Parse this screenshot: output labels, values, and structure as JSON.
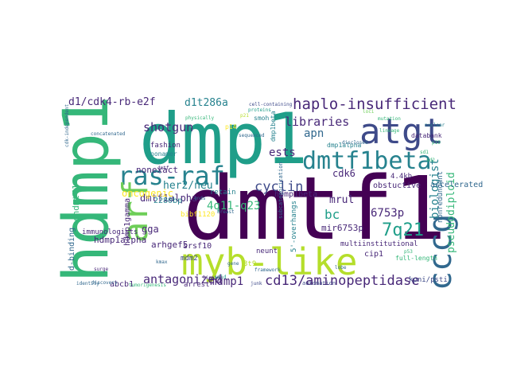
{
  "word_cloud": {
    "colors": {
      "background": "#ffffff",
      "dark_purple": "#440154",
      "indigo": "#482878",
      "blue": "#3e4a89",
      "steel": "#31688e",
      "teal": "#26828e",
      "green_teal": "#1f9e89",
      "green": "#35b779",
      "lime": "#6ece58",
      "yellow_green": "#b5de2b",
      "yellow": "#fde725"
    },
    "words": [
      {
        "text": "dmtf1",
        "color": "dark_purple"
      },
      {
        "text": "dmp1",
        "color": "green_teal"
      },
      {
        "text": "hdmp1",
        "color": "green"
      },
      {
        "text": "myb-like",
        "color": "yellow_green"
      },
      {
        "text": "atgt",
        "color": "blue"
      },
      {
        "text": "dmtf1beta",
        "color": "teal"
      },
      {
        "text": "ras-raf",
        "color": "teal"
      },
      {
        "text": "arf",
        "color": "lime"
      },
      {
        "text": "cccg",
        "color": "steel"
      },
      {
        "text": "haplo-insufficient",
        "color": "indigo"
      },
      {
        "text": "cd13/aminopeptidase",
        "color": "indigo"
      },
      {
        "text": "cyclin",
        "color": "blue"
      },
      {
        "text": "7q21",
        "color": "green_teal"
      },
      {
        "text": "libraries",
        "color": "indigo"
      },
      {
        "text": "shotgun",
        "color": "indigo"
      },
      {
        "text": "4q11-q23",
        "color": "green"
      },
      {
        "text": "6753p",
        "color": "indigo"
      },
      {
        "text": "apn",
        "color": "steel"
      },
      {
        "text": "ests",
        "color": "indigo"
      },
      {
        "text": "her2/neu",
        "color": "teal"
      },
      {
        "text": "antagonized",
        "color": "indigo"
      },
      {
        "text": "mdmp1",
        "color": "indigo"
      },
      {
        "text": "bc",
        "color": "green_teal"
      },
      {
        "text": "d1/cdk4-rb-e2f",
        "color": "indigo"
      },
      {
        "text": "d1t286a",
        "color": "teal"
      },
      {
        "text": "dmtf1alpha",
        "color": "indigo"
      },
      {
        "text": "oncogenic",
        "color": "yellow"
      },
      {
        "text": "mrul",
        "color": "indigo"
      },
      {
        "text": "cdk6",
        "color": "indigo"
      },
      {
        "text": "biologist",
        "color": "teal"
      },
      {
        "text": "pseudodiploid",
        "color": "green"
      },
      {
        "text": "gga",
        "color": "indigo"
      },
      {
        "text": "hdmp1alpha",
        "color": "indigo"
      },
      {
        "text": "arhgef5",
        "color": "indigo"
      },
      {
        "text": "nonexact",
        "color": "indigo"
      },
      {
        "text": "shdmtf1",
        "color": "green"
      },
      {
        "text": "d-binding",
        "color": "steel"
      },
      {
        "text": "hdmp1gamma",
        "color": "indigo"
      },
      {
        "text": "mir6753p",
        "color": "indigo"
      },
      {
        "text": "obstuctive",
        "color": "indigo"
      },
      {
        "text": "accelerated",
        "color": "steel"
      },
      {
        "text": "nonredundant",
        "color": "steel"
      },
      {
        "text": "multiinstitutional",
        "color": "indigo"
      },
      {
        "text": "kpni/psti",
        "color": "blue"
      },
      {
        "text": "abcb1",
        "color": "indigo"
      },
      {
        "text": "fashion",
        "color": "indigo"
      },
      {
        "text": "nonamer",
        "color": "teal"
      },
      {
        "text": "2280bp",
        "color": "teal"
      },
      {
        "text": "srsf10",
        "color": "indigo"
      },
      {
        "text": "immunologists",
        "color": "indigo"
      },
      {
        "text": "hdmp1beta",
        "color": "indigo"
      },
      {
        "text": "4.4kb",
        "color": "indigo"
      },
      {
        "text": "cip1",
        "color": "indigo"
      },
      {
        "text": "neunt",
        "color": "indigo"
      },
      {
        "text": "arrest",
        "color": "indigo"
      },
      {
        "text": "retain",
        "color": "teal"
      },
      {
        "text": "5'-overhangs",
        "color": "teal"
      },
      {
        "text": "3t9",
        "color": "yellow_green"
      },
      {
        "text": "bibf1120",
        "color": "yellow"
      },
      {
        "text": "mdm2",
        "color": "blue"
      },
      {
        "text": "smoh",
        "color": "teal"
      },
      {
        "text": "dmp1alpha",
        "color": "teal"
      },
      {
        "text": "dmp1beta",
        "color": "teal"
      },
      {
        "text": "p14",
        "color": "yellow"
      },
      {
        "text": "databank",
        "color": "indigo"
      },
      {
        "text": "full-length",
        "color": "green"
      },
      {
        "text": "automation",
        "color": "blue"
      },
      {
        "text": "subcategorization",
        "color": "steel"
      },
      {
        "text": "discovery",
        "color": "steel"
      },
      {
        "text": "surge",
        "color": "indigo"
      },
      {
        "text": "cdk-independent",
        "color": "steel"
      },
      {
        "text": "concatenated",
        "color": "steel"
      },
      {
        "text": "identity",
        "color": "steel"
      },
      {
        "text": "p53",
        "color": "green"
      },
      {
        "text": "tumorigenesis",
        "color": "green"
      },
      {
        "text": "framework",
        "color": "steel"
      },
      {
        "text": "physically",
        "color": "green"
      },
      {
        "text": "nuclear",
        "color": "teal"
      },
      {
        "text": "mutation",
        "color": "green"
      },
      {
        "text": "p19",
        "color": "green"
      },
      {
        "text": "proteins",
        "color": "green_teal"
      },
      {
        "text": "sequenced",
        "color": "steel"
      },
      {
        "text": "lipoid",
        "color": "indigo"
      },
      {
        "text": "sd1",
        "color": "green"
      },
      {
        "text": "sd2",
        "color": "green"
      },
      {
        "text": "p21",
        "color": "yellow_green"
      },
      {
        "text": "wild",
        "color": "green_teal"
      },
      {
        "text": "breast",
        "color": "steel"
      },
      {
        "text": "lobe",
        "color": "steel"
      },
      {
        "text": "ends",
        "color": "steel"
      },
      {
        "text": "gene",
        "color": "steel"
      },
      {
        "text": "junk",
        "color": "blue"
      },
      {
        "text": "cell-containing",
        "color": "blue"
      },
      {
        "text": "disclosed",
        "color": "steel"
      },
      {
        "text": "lineage",
        "color": "green"
      },
      {
        "text": "loci",
        "color": "lime"
      },
      {
        "text": "kmax",
        "color": "steel"
      },
      {
        "text": "dmtf",
        "color": "indigo"
      }
    ]
  }
}
